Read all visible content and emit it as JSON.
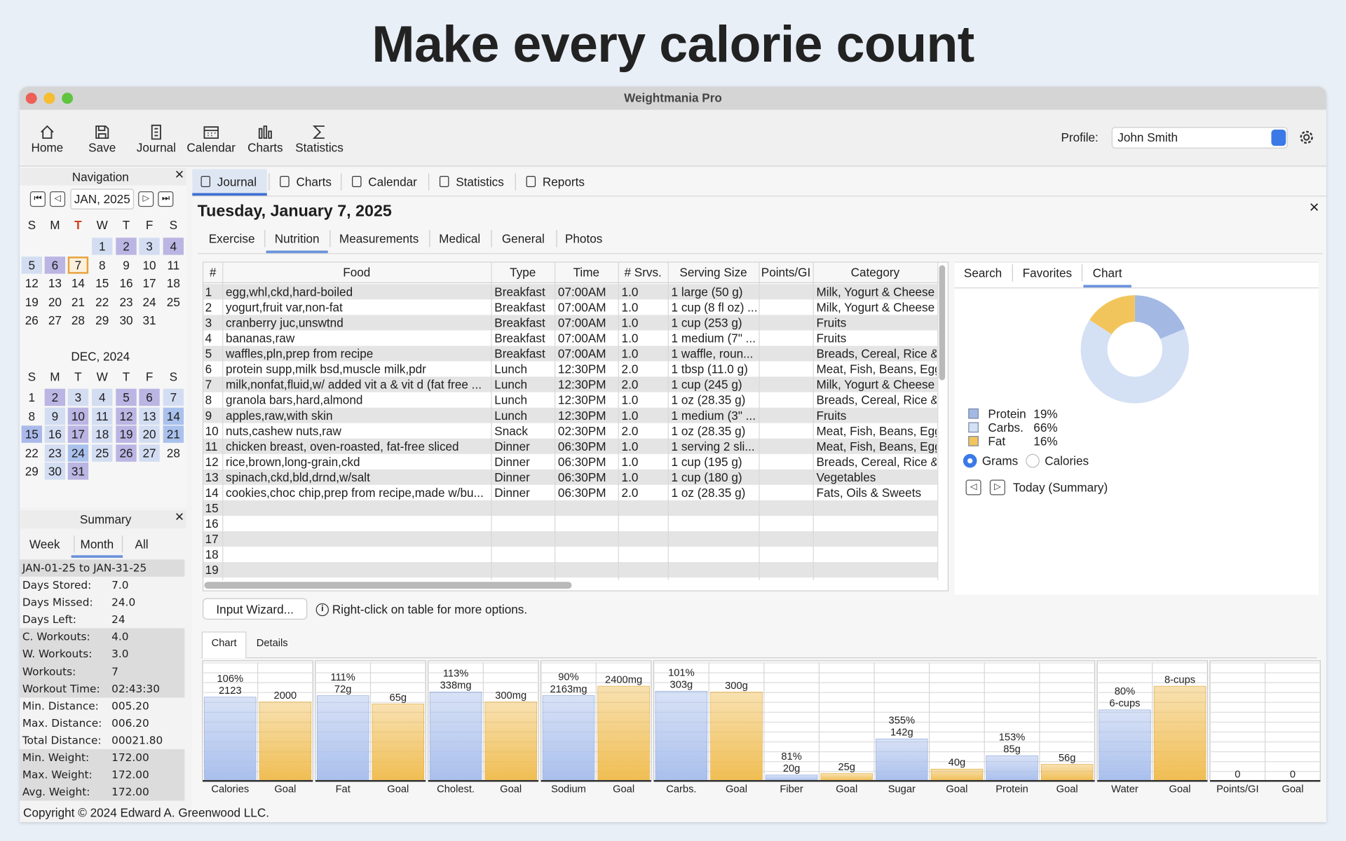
{
  "headline": "Make every calorie count",
  "window": {
    "title": "Weightmania Pro"
  },
  "toolbar": {
    "items": [
      "Home",
      "Save",
      "Journal",
      "Calendar",
      "Charts",
      "Statistics"
    ],
    "profile_label": "Profile:",
    "profile_value": "John Smith"
  },
  "navigation": {
    "title": "Navigation",
    "month": "JAN, 2025",
    "weekdays": [
      "S",
      "M",
      "T",
      "W",
      "T",
      "F",
      "S"
    ],
    "calendars": [
      {
        "start": 3,
        "selected": 7,
        "days": [
          1,
          2,
          3,
          4,
          5,
          6,
          7,
          8,
          9,
          10,
          11,
          12,
          13,
          14,
          15,
          16,
          17,
          18,
          19,
          20,
          21,
          22,
          23,
          24,
          25,
          26,
          27,
          28,
          29,
          30,
          31
        ],
        "colors": [
          "#d3ddf2",
          "#bab5e3",
          "#d3ddf2",
          "#bab5e3",
          "#d3ddf2",
          "#bab5e3",
          "#fbf0dc",
          null,
          null,
          null,
          null,
          null,
          null,
          null,
          null,
          null,
          null,
          null,
          null,
          null,
          null,
          null,
          null,
          null,
          null,
          null,
          null,
          null,
          null,
          null,
          null
        ]
      },
      {
        "title": "DEC, 2024",
        "start": 0,
        "days": [
          1,
          2,
          3,
          4,
          5,
          6,
          7,
          8,
          9,
          10,
          11,
          12,
          13,
          14,
          15,
          16,
          17,
          18,
          19,
          20,
          21,
          22,
          23,
          24,
          25,
          26,
          27,
          28,
          29,
          30,
          31
        ],
        "colors": [
          null,
          "#bab5e3",
          "#d3ddf2",
          "#d3ddf2",
          "#bab5e3",
          "#bab5e3",
          "#d3ddf2",
          null,
          "#d3ddf2",
          "#bab5e3",
          "#d3ddf2",
          "#bab5e3",
          "#d3ddf2",
          "#a9c1ec",
          "#aab9ea",
          "#d3ddf2",
          "#bab5e3",
          "#d3ddf2",
          "#bab5e3",
          "#d3ddf2",
          "#a9c1ec",
          null,
          "#d3ddf2",
          "#a9c1ec",
          "#d3ddf2",
          "#bab5e3",
          "#d3ddf2",
          null,
          null,
          "#d3ddf2",
          "#bab5e3"
        ]
      }
    ]
  },
  "summary": {
    "title": "Summary",
    "tabs": [
      "Week",
      "Month",
      "All"
    ],
    "active_tab": 1,
    "range": "JAN-01-25 to JAN-31-25",
    "groups": [
      [
        [
          "Days Stored:",
          "7.0"
        ],
        [
          "Days Missed:",
          "24.0"
        ],
        [
          "Days Left:",
          "24"
        ]
      ],
      [
        [
          "C. Workouts:",
          "4.0"
        ],
        [
          "W. Workouts:",
          "3.0"
        ],
        [
          "Workouts:",
          "7"
        ],
        [
          "Workout Time:",
          "02:43:30"
        ]
      ],
      [
        [
          "Min. Distance:",
          "005.20"
        ],
        [
          "Max. Distance:",
          "006.20"
        ],
        [
          "Total Distance:",
          "00021.80"
        ]
      ],
      [
        [
          "Min. Weight:",
          "172.00"
        ],
        [
          "Max. Weight:",
          "172.00"
        ],
        [
          "Avg. Weight:",
          "172.00"
        ]
      ]
    ]
  },
  "journal": {
    "tabs": [
      "Journal",
      "Charts",
      "Calendar",
      "Statistics",
      "Reports"
    ],
    "active_tab": 0,
    "date": "Tuesday, January 7, 2025",
    "subtabs": [
      "Exercise",
      "Nutrition",
      "Measurements",
      "Medical",
      "General",
      "Photos"
    ],
    "active_subtab": 1,
    "table": {
      "columns": [
        "#",
        "Food",
        "Type",
        "Time",
        "# Srvs.",
        "Serving Size",
        "Points/GI",
        "Category"
      ],
      "rows": [
        [
          1,
          "egg,whl,ckd,hard-boiled",
          "Breakfast",
          "07:00AM",
          "1.0",
          "1 large (50 g)",
          null,
          "Milk, Yogurt & Cheese"
        ],
        [
          2,
          "yogurt,fruit var,non-fat",
          "Breakfast",
          "07:00AM",
          "1.0",
          "1 cup (8 fl oz) ...",
          null,
          "Milk, Yogurt & Cheese"
        ],
        [
          3,
          "cranberry juc,unswtnd",
          "Breakfast",
          "07:00AM",
          "1.0",
          "1 cup (253 g)",
          null,
          "Fruits"
        ],
        [
          4,
          "bananas,raw",
          "Breakfast",
          "07:00AM",
          "1.0",
          "1 medium (7\" ...",
          null,
          "Fruits"
        ],
        [
          5,
          "waffles,pln,prep from recipe",
          "Breakfast",
          "07:00AM",
          "1.0",
          "1 waffle, roun...",
          null,
          "Breads, Cereal, Rice &"
        ],
        [
          6,
          "protein supp,milk bsd,muscle milk,pdr",
          "Lunch",
          "12:30PM",
          "2.0",
          "1 tbsp (11.0 g)",
          null,
          "Meat, Fish, Beans, Egg"
        ],
        [
          7,
          "milk,nonfat,fluid,w/ added vit a & vit d (fat free ...",
          "Lunch",
          "12:30PM",
          "2.0",
          "1 cup (245 g)",
          null,
          "Milk, Yogurt & Cheese"
        ],
        [
          8,
          "granola bars,hard,almond",
          "Lunch",
          "12:30PM",
          "1.0",
          "1 oz (28.35 g)",
          null,
          "Breads, Cereal, Rice &"
        ],
        [
          9,
          "apples,raw,with skin",
          "Lunch",
          "12:30PM",
          "1.0",
          "1 medium (3\" ...",
          null,
          "Fruits"
        ],
        [
          10,
          "nuts,cashew nuts,raw",
          "Snack",
          "02:30PM",
          "2.0",
          "1 oz (28.35 g)",
          null,
          "Meat, Fish, Beans, Egg"
        ],
        [
          11,
          "chicken breast, oven-roasted, fat-free sliced",
          "Dinner",
          "06:30PM",
          "1.0",
          "1 serving 2 sli...",
          null,
          "Meat, Fish, Beans, Egg"
        ],
        [
          12,
          "rice,brown,long-grain,ckd",
          "Dinner",
          "06:30PM",
          "1.0",
          "1 cup (195 g)",
          null,
          "Breads, Cereal, Rice &"
        ],
        [
          13,
          "spinach,ckd,bld,drnd,w/salt",
          "Dinner",
          "06:30PM",
          "1.0",
          "1 cup (180 g)",
          null,
          "Vegetables"
        ],
        [
          14,
          "cookies,choc chip,prep from recipe,made w/bu...",
          "Dinner",
          "06:30PM",
          "2.0",
          "1 oz (28.35 g)",
          null,
          "Fats, Oils & Sweets"
        ],
        [
          15
        ],
        [
          16
        ],
        [
          17
        ],
        [
          18
        ],
        [
          19
        ]
      ]
    },
    "button": "Input Wizard...",
    "hint": "Right-click on table for more options."
  },
  "side_panel": {
    "tabs": [
      "Search",
      "Favorites",
      "Chart"
    ],
    "active_tab": 2,
    "macro_chart": {
      "type": "pie",
      "categories": [
        "Protein",
        "Carbs.",
        "Fat"
      ],
      "values": [
        19,
        66,
        16
      ],
      "value_labels": [
        "19%",
        "66%",
        "16%"
      ],
      "colors": [
        "#a3b9e4",
        "#d4e0f4",
        "#f2c55c"
      ]
    },
    "options": [
      "Grams",
      "Calories"
    ],
    "selected_option": 0,
    "period": "Today (Summary)"
  },
  "nutrient_chart": {
    "type": "bar",
    "tabs": [
      "Chart",
      "Details"
    ],
    "active_tab": 0,
    "actual_color": "#a9bfec",
    "goal_color": "#f0bd52",
    "panels": [
      {
        "ylim": [
          0,
          3000
        ],
        "bars": [
          {
            "label": "Calories",
            "value": 2123,
            "percent": "106%"
          },
          {
            "label": "Goal",
            "value": 2000
          }
        ]
      },
      {
        "ylim": [
          0,
          100
        ],
        "bars": [
          {
            "label": "Fat",
            "value": 72,
            "value_label": "72g",
            "percent": "111%"
          },
          {
            "label": "Goal",
            "value": 65,
            "value_label": "65g"
          }
        ]
      },
      {
        "ylim": [
          0,
          450
        ],
        "bars": [
          {
            "label": "Cholest.",
            "value": 338,
            "value_label": "338mg",
            "percent": "113%"
          },
          {
            "label": "Goal",
            "value": 300,
            "value_label": "300mg"
          }
        ]
      },
      {
        "ylim": [
          0,
          3000
        ],
        "bars": [
          {
            "label": "Sodium",
            "value": 2163,
            "value_label": "2163mg",
            "percent": "90%"
          },
          {
            "label": "Goal",
            "value": 2400,
            "value_label": "2400mg"
          }
        ]
      },
      {
        "ylim": [
          0,
          400
        ],
        "bars": [
          {
            "label": "Carbs.",
            "value": 303,
            "value_label": "303g",
            "percent": "101%"
          },
          {
            "label": "Goal",
            "value": 300,
            "value_label": "300g"
          },
          {
            "label": "Fiber",
            "value": 20,
            "value_label": "20g",
            "percent": "81%"
          },
          {
            "label": "Goal",
            "value": 25,
            "value_label": "25g"
          },
          {
            "label": "Sugar",
            "value": 142,
            "value_label": "142g",
            "percent": "355%"
          },
          {
            "label": "Goal",
            "value": 40,
            "value_label": "40g"
          },
          {
            "label": "Protein",
            "value": 85,
            "value_label": "85g",
            "percent": "153%"
          },
          {
            "label": "Goal",
            "value": 56,
            "value_label": "56g"
          }
        ]
      },
      {
        "ylim": [
          0,
          10
        ],
        "bars": [
          {
            "label": "Water",
            "value": 6,
            "value_label": "6-cups",
            "percent": "80%"
          },
          {
            "label": "Goal",
            "value": 8,
            "value_label": "8-cups"
          }
        ]
      },
      {
        "ylim": [
          0,
          1
        ],
        "bars": [
          {
            "label": "Points/GI",
            "value": 0
          },
          {
            "label": "Goal",
            "value": 0
          }
        ]
      }
    ]
  },
  "copyright": "Copyright © 2024 Edward A. Greenwood LLC."
}
